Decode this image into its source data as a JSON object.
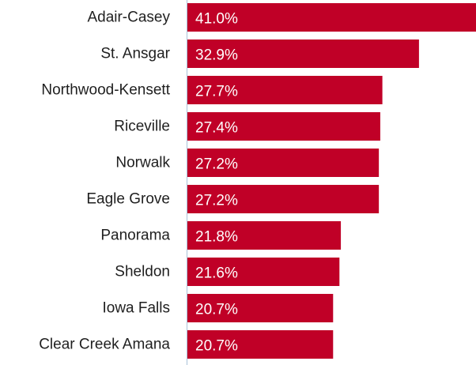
{
  "chart_data": {
    "type": "bar",
    "orientation": "horizontal",
    "categories": [
      "Adair-Casey",
      "St. Ansgar",
      "Northwood-Kensett",
      "Riceville",
      "Norwalk",
      "Eagle Grove",
      "Panorama",
      "Sheldon",
      "Iowa Falls",
      "Clear Creek Amana"
    ],
    "values": [
      41.0,
      32.9,
      27.7,
      27.4,
      27.2,
      27.2,
      21.8,
      21.6,
      20.7,
      20.7
    ],
    "value_labels": [
      "41.0%",
      "32.9%",
      "27.7%",
      "27.4%",
      "27.2%",
      "27.2%",
      "21.8%",
      "21.6%",
      "20.7%",
      "20.7%"
    ],
    "xlim": [
      0,
      41.0
    ],
    "bar_color": "#c00027",
    "axis_color": "#a9c1d9",
    "grid": false,
    "legend": "none"
  }
}
